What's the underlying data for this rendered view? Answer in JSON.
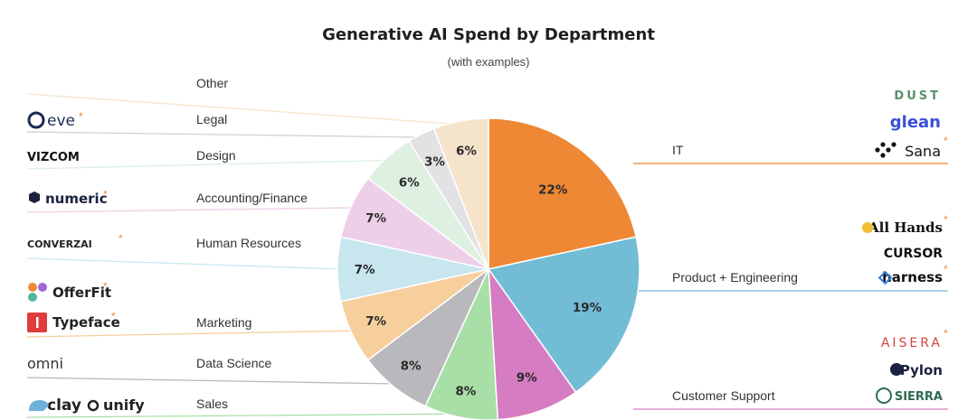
{
  "chart_data": {
    "type": "pie",
    "title": "Generative AI Spend by Department",
    "subtitle": "(with examples)",
    "slices": [
      {
        "label": "IT",
        "value": 22,
        "value_label": "22%",
        "color": "#ee8834",
        "side": "right"
      },
      {
        "label": "Product + Engineering",
        "value": 19,
        "value_label": "19%",
        "color": "#72bcd6",
        "side": "right"
      },
      {
        "label": "Customer Support",
        "value": 9,
        "value_label": "9%",
        "color": "#d67cc2",
        "side": "right"
      },
      {
        "label": "Sales",
        "value": 8,
        "value_label": "8%",
        "color": "#a8dfa6",
        "side": "left"
      },
      {
        "label": "Data Science",
        "value": 8,
        "value_label": "8%",
        "color": "#b9b9bd",
        "side": "left"
      },
      {
        "label": "Marketing",
        "value": 7,
        "value_label": "7%",
        "color": "#f7cf9d",
        "side": "left"
      },
      {
        "label": "Human Resources",
        "value": 7,
        "value_label": "7%",
        "color": "#c7e6ee",
        "side": "left"
      },
      {
        "label": "Accounting/Finance",
        "value": 7,
        "value_label": "7%",
        "color": "#edcfe8",
        "side": "left"
      },
      {
        "label": "Design",
        "value": 6,
        "value_label": "6%",
        "color": "#ddf0e1",
        "side": "left"
      },
      {
        "label": "Legal",
        "value": 3,
        "value_label": "3%",
        "color": "#e2e2e5",
        "side": "left"
      },
      {
        "label": "Other",
        "value": 6,
        "value_label": "6%",
        "color": "#f6e3cc",
        "side": "left"
      }
    ],
    "examples": [
      {
        "department": "Other",
        "side": "left",
        "logos": []
      },
      {
        "department": "Legal",
        "side": "left",
        "logos": [
          {
            "text": "eve",
            "star": true,
            "icon": "eve-circle-icon"
          }
        ]
      },
      {
        "department": "Design",
        "side": "left",
        "logos": [
          {
            "text": "VIZCOM",
            "star": false
          }
        ]
      },
      {
        "department": "Accounting/Finance",
        "side": "left",
        "logos": [
          {
            "text": "numeric",
            "star": true,
            "icon": "numeric-hex-icon"
          }
        ]
      },
      {
        "department": "Human Resources",
        "side": "left",
        "logos": [
          {
            "text": "CONVERZAI",
            "star": true
          }
        ]
      },
      {
        "department": "Marketing",
        "side": "left",
        "logos": [
          {
            "text": "OfferFit",
            "star": true,
            "icon": "offerfit-petals-icon"
          },
          {
            "text": "Typeface",
            "star": true,
            "icon": "typeface-square-icon"
          }
        ]
      },
      {
        "department": "Data Science",
        "side": "left",
        "logos": [
          {
            "text": "omni",
            "star": false
          }
        ]
      },
      {
        "department": "Sales",
        "side": "left",
        "logos": [
          {
            "text": "clay",
            "star": false,
            "icon": "clay-icon"
          },
          {
            "text": "unify",
            "star": false,
            "icon": "unify-icon"
          }
        ]
      },
      {
        "department": "IT",
        "side": "right",
        "logos": [
          {
            "text": "DUST",
            "star": false
          },
          {
            "text": "glean",
            "star": false
          },
          {
            "text": "Sana",
            "star": true,
            "icon": "sana-dots-icon"
          }
        ]
      },
      {
        "department": "Product + Engineering",
        "side": "right",
        "logos": [
          {
            "text": "All Hands",
            "star": true,
            "icon": "allhands-icon"
          },
          {
            "text": "CURSOR",
            "star": false
          },
          {
            "text": "harness",
            "star": true,
            "icon": "harness-icon"
          }
        ]
      },
      {
        "department": "Customer Support",
        "side": "right",
        "logos": [
          {
            "text": "AISERA",
            "star": true
          },
          {
            "text": "Pylon",
            "star": false,
            "icon": "pylon-icon"
          },
          {
            "text": "SIERRA",
            "star": false,
            "icon": "sierra-icon"
          }
        ]
      }
    ],
    "star_color": "#ef8a3b"
  }
}
